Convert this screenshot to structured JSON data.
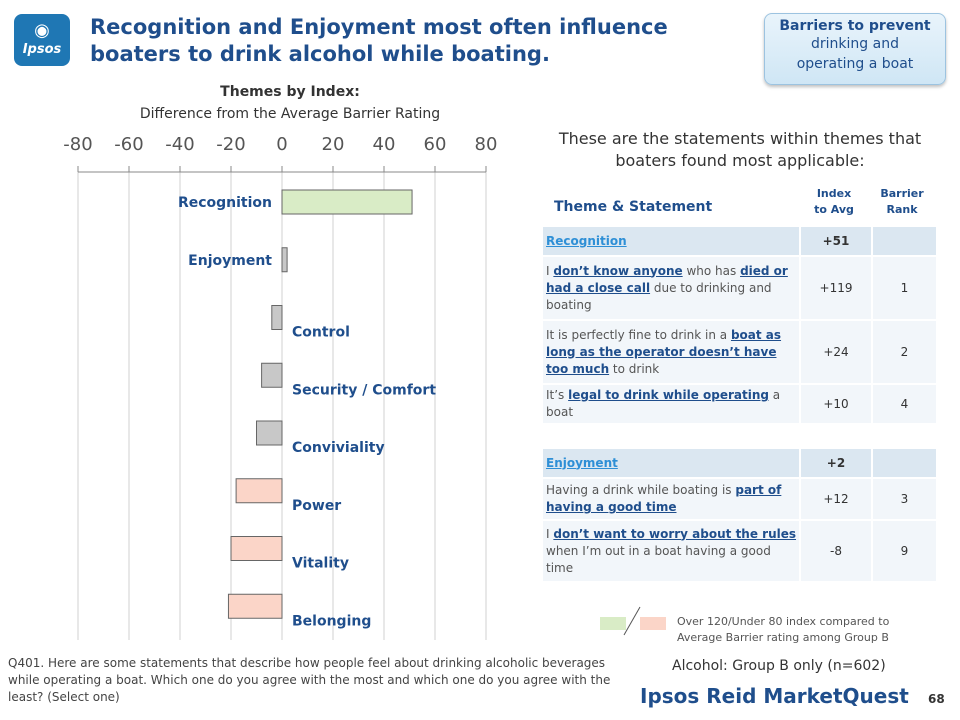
{
  "header": {
    "logo_text": "Ipsos",
    "title": "Recognition and Enjoyment most often influence boaters to drink alcohol while boating.",
    "nav_button": {
      "line1": "Barriers to prevent",
      "line2": "drinking and",
      "line3": "operating a boat"
    }
  },
  "chart_data": {
    "type": "bar",
    "orientation": "horizontal",
    "title": "Themes by Index:",
    "subtitle": "Difference from the Average Barrier Rating",
    "categories": [
      "Recognition",
      "Enjoyment",
      "Control",
      "Security / Comfort",
      "Conviviality",
      "Power",
      "Vitality",
      "Belonging"
    ],
    "values": [
      51,
      2,
      -4,
      -8,
      -10,
      -18,
      -20,
      -21
    ],
    "xlim": [
      -80,
      80
    ],
    "ticks": [
      "-80",
      "-60",
      "-40",
      "-20",
      "0",
      "20",
      "40",
      "60",
      "80"
    ],
    "tick_values": [
      -80,
      -60,
      -40,
      -20,
      0,
      20,
      40,
      60,
      80
    ],
    "grid": true,
    "colors": {
      "over": "#d9ecc6",
      "under": "#fbd5c8",
      "neutral": "#c8c8c8"
    }
  },
  "table": {
    "heading": "These are the statements within themes that boaters found most applicable:",
    "col_theme": "Theme & Statement",
    "col_index_1": "Index",
    "col_index_2": "to Avg",
    "col_rank_1": "Barrier",
    "col_rank_2": "Rank",
    "groups": [
      {
        "theme": "Recognition",
        "index": "+51",
        "rows": [
          {
            "index": "+119",
            "rank": "1"
          },
          {
            "index": "+24",
            "rank": "2"
          },
          {
            "index": "+10",
            "rank": "4"
          }
        ]
      },
      {
        "theme": "Enjoyment",
        "index": "+2",
        "rows": [
          {
            "index": "+12",
            "rank": "3"
          },
          {
            "index": "-8",
            "rank": "9"
          }
        ]
      }
    ]
  },
  "statements": {
    "s1": {
      "a": "I ",
      "b": "don’t know anyone",
      "c": " who has ",
      "d": "died or had a close call",
      "e": " due to drinking and boating"
    },
    "s2": {
      "a": "It is perfectly fine to drink in a ",
      "b": "boat as long as the operator doesn’t have too much",
      "c": " to drink"
    },
    "s3": {
      "a": "It’s ",
      "b": "legal to drink while operating",
      "c": " a boat"
    },
    "s4": {
      "a": "Having a drink while boating is ",
      "b": "part of having a good time"
    },
    "s5": {
      "a": "I ",
      "b": "don’t want to worry about the rules",
      "c": " when I’m out in a boat having a good time"
    }
  },
  "legend": {
    "line1": "Over 120/Under 80 index compared to",
    "line2": "Average Barrier rating among Group B"
  },
  "base_note": "Alcohol: Group B only (n=602)",
  "footnote": "Q401. Here are some statements that describe how people feel about drinking alcoholic beverages while operating a boat. Which one do you agree with the most and which one do you agree with the least? (Select one)",
  "brand": "Ipsos Reid MarketQuest",
  "page_number": "68"
}
